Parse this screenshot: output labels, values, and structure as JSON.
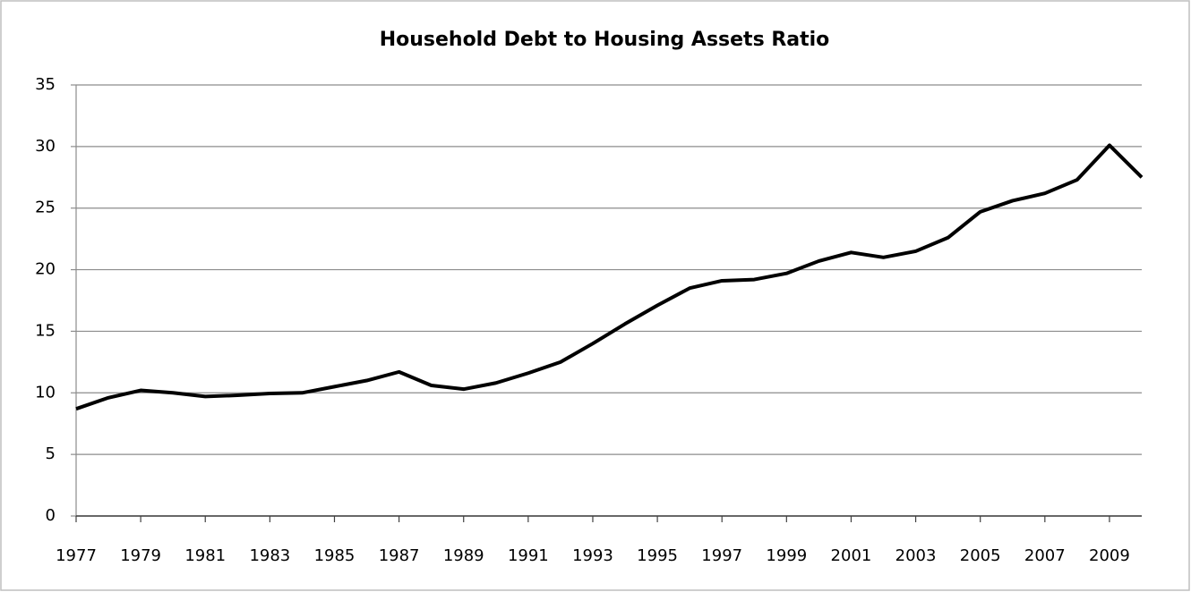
{
  "chart_data": {
    "type": "line",
    "title": "Household Debt to Housing Assets Ratio",
    "x": [
      1977,
      1978,
      1979,
      1980,
      1981,
      1982,
      1983,
      1984,
      1985,
      1986,
      1987,
      1988,
      1989,
      1990,
      1991,
      1992,
      1993,
      1994,
      1995,
      1996,
      1997,
      1998,
      1999,
      2000,
      2001,
      2002,
      2003,
      2004,
      2005,
      2006,
      2007,
      2008,
      2009,
      2010
    ],
    "series": [
      {
        "name": "Household Debt to Housing Assets Ratio",
        "color": "#000000",
        "values": [
          8.7,
          9.6,
          10.2,
          10.0,
          9.7,
          9.8,
          9.95,
          10.0,
          10.5,
          11.0,
          11.7,
          10.6,
          10.3,
          10.8,
          11.6,
          12.5,
          14.0,
          15.6,
          17.1,
          18.5,
          19.1,
          19.2,
          19.7,
          20.7,
          21.4,
          21.0,
          21.5,
          22.6,
          24.7,
          25.6,
          26.2,
          27.3,
          30.1,
          27.5
        ]
      }
    ],
    "xlim": [
      1977,
      2010
    ],
    "xticks": [
      1977,
      1979,
      1981,
      1983,
      1985,
      1987,
      1989,
      1991,
      1993,
      1995,
      1997,
      1999,
      2001,
      2003,
      2005,
      2007,
      2009
    ],
    "ylim": [
      0,
      35
    ],
    "yticks": [
      0,
      5,
      10,
      15,
      20,
      25,
      30,
      35
    ],
    "grid": true
  }
}
